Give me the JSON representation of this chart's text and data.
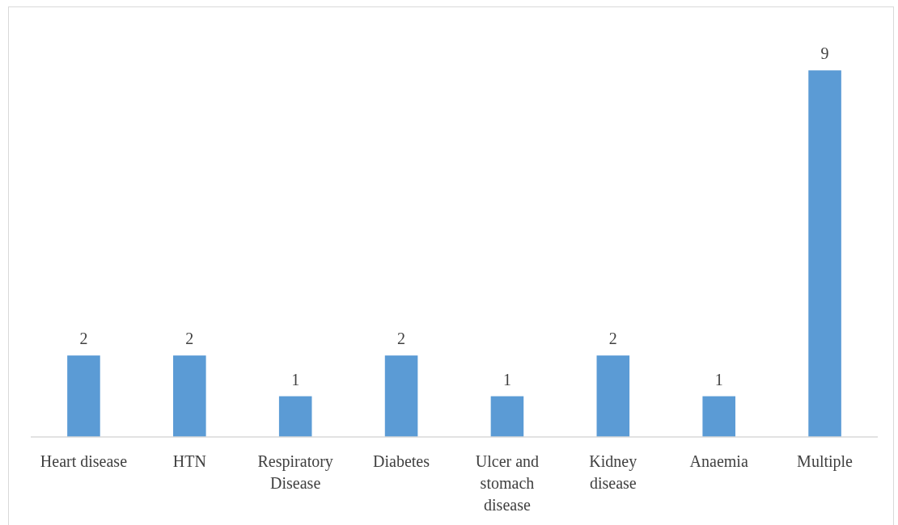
{
  "chart_data": {
    "type": "bar",
    "categories": [
      "Heart disease",
      "HTN",
      "Respiratory Disease",
      "Diabetes",
      "Ulcer and stomach disease",
      "Kidney disease",
      "Anaemia",
      "Multiple"
    ],
    "values": [
      2,
      2,
      1,
      2,
      1,
      2,
      1,
      9
    ],
    "color": "#5b9bd5",
    "data_labels": true
  }
}
